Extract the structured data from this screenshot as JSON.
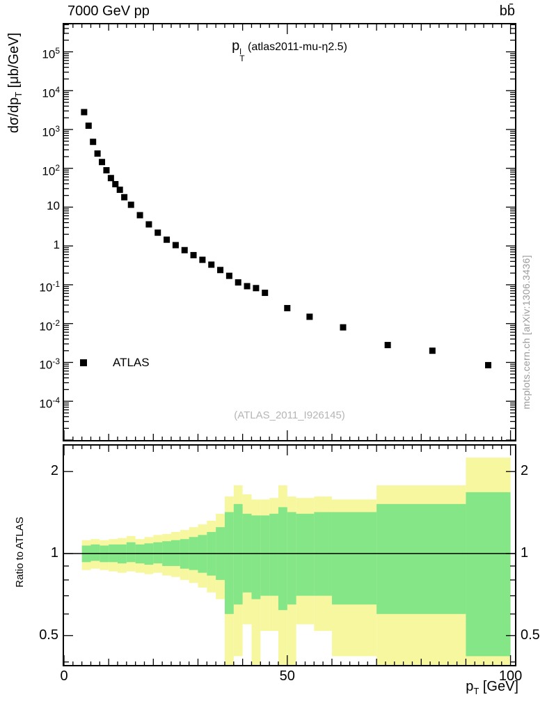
{
  "header": {
    "beam": "7000 GeV pp",
    "process": "bb̄"
  },
  "panel_title": {
    "base": "p",
    "sup": "l",
    "sub": "T",
    "rest": " (atlas2011-mu-η2.5)"
  },
  "legend": {
    "atlas": "ATLAS"
  },
  "ref_label": "(ATLAS_2011_I926145)",
  "watermark": "mcplots.cern.ch [arXiv:1306.3436]",
  "axes": {
    "y_title": {
      "pre": "dσ/dp",
      "sub": "T",
      "post": " [μb/GeV]"
    },
    "x_title": {
      "pre": "p",
      "sub": "T",
      "post": " [GeV]"
    },
    "ratio_y_title": "Ratio to ATLAS"
  },
  "chart_data": [
    {
      "type": "scatter",
      "title": "pT^l (atlas2011-mu-eta2.5)",
      "xlabel": "pT [GeV]",
      "ylabel": "dsigma/dpT [mub/GeV]",
      "xlim": [
        0,
        101
      ],
      "ylim": [
        1e-05,
        510000
      ],
      "ylog": true,
      "xticks": [
        0,
        50,
        100
      ],
      "ytick_exponents": [
        5,
        4,
        3,
        2,
        1,
        0,
        -1,
        -2,
        -3,
        -4
      ],
      "series": [
        {
          "name": "ATLAS",
          "marker": "square",
          "color": "#000000",
          "points": [
            [
              4.5,
              2800
            ],
            [
              5.5,
              1250
            ],
            [
              6.5,
              480
            ],
            [
              7.5,
              240
            ],
            [
              8.5,
              145
            ],
            [
              9.5,
              89
            ],
            [
              10.5,
              56
            ],
            [
              11.5,
              39
            ],
            [
              12.5,
              28
            ],
            [
              13.5,
              18
            ],
            [
              15,
              11.5
            ],
            [
              17,
              6.2
            ],
            [
              19,
              3.6
            ],
            [
              21,
              2.2
            ],
            [
              23,
              1.45
            ],
            [
              25,
              1.05
            ],
            [
              27,
              0.78
            ],
            [
              29,
              0.58
            ],
            [
              31,
              0.44
            ],
            [
              33,
              0.33
            ],
            [
              35,
              0.24
            ],
            [
              37,
              0.17
            ],
            [
              39,
              0.115
            ],
            [
              41,
              0.092
            ],
            [
              43,
              0.082
            ],
            [
              45,
              0.062
            ],
            [
              50,
              0.025
            ],
            [
              55,
              0.015
            ],
            [
              62.5,
              0.008
            ],
            [
              72.5,
              0.0028
            ],
            [
              82.5,
              0.002
            ],
            [
              95,
              0.00085
            ]
          ]
        }
      ]
    },
    {
      "type": "area",
      "title": "Ratio to ATLAS",
      "xlim": [
        0,
        101
      ],
      "ylim": [
        0.39,
        2.49
      ],
      "ylog": true,
      "yticks": [
        0.5,
        1,
        2
      ],
      "ytick_minor": [
        0.4,
        0.5,
        0.6,
        0.7,
        0.8,
        0.9,
        1,
        2
      ],
      "reference_line": 1,
      "bands": [
        {
          "name": "yellow-band",
          "color": "#f7f7a0",
          "bins": [
            [
              4,
              6,
              0.87,
              1.12
            ],
            [
              6,
              8,
              0.88,
              1.13
            ],
            [
              8,
              10,
              0.87,
              1.12
            ],
            [
              10,
              12,
              0.86,
              1.13
            ],
            [
              12,
              14,
              0.85,
              1.14
            ],
            [
              14,
              16,
              0.86,
              1.16
            ],
            [
              16,
              18,
              0.85,
              1.13
            ],
            [
              18,
              20,
              0.84,
              1.15
            ],
            [
              20,
              22,
              0.85,
              1.17
            ],
            [
              22,
              24,
              0.83,
              1.18
            ],
            [
              24,
              26,
              0.82,
              1.2
            ],
            [
              26,
              28,
              0.8,
              1.22
            ],
            [
              28,
              30,
              0.78,
              1.25
            ],
            [
              30,
              32,
              0.75,
              1.28
            ],
            [
              32,
              34,
              0.72,
              1.32
            ],
            [
              34,
              36,
              0.68,
              1.4
            ],
            [
              36,
              38,
              0.33,
              1.62
            ],
            [
              38,
              40,
              0.42,
              1.78
            ],
            [
              40,
              42,
              0.55,
              1.65
            ],
            [
              42,
              44,
              0.33,
              1.58
            ],
            [
              44,
              46,
              0.52,
              1.58
            ],
            [
              46,
              48,
              0.52,
              1.6
            ],
            [
              48,
              50,
              0.33,
              1.78
            ],
            [
              50,
              52,
              0.33,
              1.62
            ],
            [
              52,
              56,
              0.55,
              1.6
            ],
            [
              56,
              60,
              0.52,
              1.62
            ],
            [
              60,
              70,
              0.42,
              1.58
            ],
            [
              70,
              90,
              0.35,
              1.78
            ],
            [
              90,
              100,
              0.35,
              2.25
            ]
          ]
        },
        {
          "name": "green-band",
          "color": "#85e687",
          "bins": [
            [
              4,
              6,
              0.93,
              1.07
            ],
            [
              6,
              8,
              0.94,
              1.08
            ],
            [
              8,
              10,
              0.93,
              1.07
            ],
            [
              10,
              12,
              0.93,
              1.08
            ],
            [
              12,
              14,
              0.92,
              1.08
            ],
            [
              14,
              16,
              0.93,
              1.1
            ],
            [
              16,
              18,
              0.92,
              1.08
            ],
            [
              18,
              20,
              0.91,
              1.09
            ],
            [
              20,
              22,
              0.92,
              1.1
            ],
            [
              22,
              24,
              0.9,
              1.11
            ],
            [
              24,
              26,
              0.9,
              1.12
            ],
            [
              26,
              28,
              0.88,
              1.13
            ],
            [
              28,
              30,
              0.87,
              1.15
            ],
            [
              30,
              32,
              0.85,
              1.17
            ],
            [
              32,
              34,
              0.83,
              1.2
            ],
            [
              34,
              36,
              0.8,
              1.25
            ],
            [
              36,
              38,
              0.6,
              1.42
            ],
            [
              38,
              40,
              0.65,
              1.52
            ],
            [
              40,
              42,
              0.72,
              1.4
            ],
            [
              42,
              44,
              0.68,
              1.38
            ],
            [
              44,
              46,
              0.7,
              1.38
            ],
            [
              46,
              48,
              0.7,
              1.4
            ],
            [
              48,
              50,
              0.62,
              1.48
            ],
            [
              50,
              52,
              0.65,
              1.42
            ],
            [
              52,
              56,
              0.7,
              1.4
            ],
            [
              56,
              60,
              0.7,
              1.42
            ],
            [
              60,
              70,
              0.65,
              1.42
            ],
            [
              70,
              90,
              0.6,
              1.52
            ],
            [
              90,
              100,
              0.42,
              1.68
            ]
          ]
        }
      ]
    }
  ]
}
